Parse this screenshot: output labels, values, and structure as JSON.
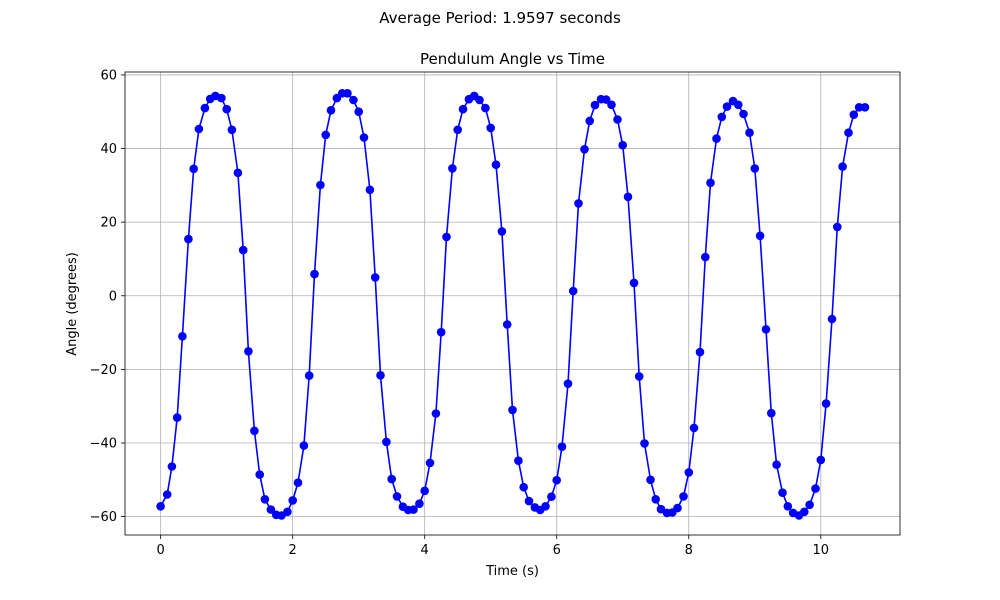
{
  "figure": {
    "suptitle": "Average Period: 1.9597 seconds"
  },
  "chart_data": {
    "type": "line",
    "title": "Pendulum Angle vs Time",
    "xlabel": "Time (s)",
    "ylabel": "Angle (degrees)",
    "xlim": [
      -0.54,
      11.2
    ],
    "ylim": [
      -65,
      60.8
    ],
    "grid": true,
    "xticks": [
      0,
      2,
      4,
      6,
      8,
      10
    ],
    "yticks": [
      -60,
      -40,
      -20,
      0,
      20,
      40,
      60
    ],
    "xtick_labels": [
      "0",
      "2",
      "4",
      "6",
      "8",
      "10"
    ],
    "ytick_labels": [
      "−60",
      "−40",
      "−20",
      "0",
      "20",
      "40",
      "60"
    ],
    "series": [
      {
        "color": "#0000ff",
        "marker": "circle",
        "x": [
          0.0,
          0.1,
          0.17,
          0.25,
          0.33,
          0.42,
          0.5,
          0.58,
          0.67,
          0.75,
          0.83,
          0.92,
          1.0,
          1.08,
          1.17,
          1.25,
          1.33,
          1.42,
          1.5,
          1.58,
          1.67,
          1.75,
          1.83,
          1.92,
          2.0,
          2.08,
          2.17,
          2.25,
          2.33,
          2.42,
          2.5,
          2.58,
          2.67,
          2.75,
          2.83,
          2.92,
          3.0,
          3.08,
          3.17,
          3.25,
          3.33,
          3.42,
          3.5,
          3.58,
          3.67,
          3.75,
          3.83,
          3.92,
          4.0,
          4.08,
          4.17,
          4.25,
          4.33,
          4.42,
          4.5,
          4.58,
          4.67,
          4.75,
          4.83,
          4.92,
          5.0,
          5.08,
          5.17,
          5.25,
          5.33,
          5.42,
          5.5,
          5.58,
          5.67,
          5.75,
          5.83,
          5.92,
          6.0,
          6.08,
          6.17,
          6.25,
          6.33,
          6.42,
          6.5,
          6.58,
          6.67,
          6.75,
          6.83,
          6.92,
          7.0,
          7.08,
          7.17,
          7.25,
          7.33,
          7.42,
          7.5,
          7.58,
          7.67,
          7.75,
          7.83,
          7.92,
          8.0,
          8.08,
          8.17,
          8.25,
          8.33,
          8.42,
          8.5,
          8.58,
          8.67,
          8.75,
          8.83,
          8.92,
          9.0,
          9.08,
          9.17,
          9.25,
          9.33,
          9.42,
          9.5,
          9.58,
          9.67,
          9.75,
          9.83,
          9.92,
          10.0,
          10.08,
          10.17,
          10.25,
          10.33,
          10.42,
          10.5,
          10.58,
          10.67
        ],
        "y": [
          -57.2,
          -54.0,
          -46.4,
          -33.1,
          -11.0,
          15.4,
          34.5,
          45.3,
          51.0,
          53.5,
          54.3,
          53.7,
          50.7,
          45.1,
          33.4,
          12.4,
          -15.1,
          -36.7,
          -48.6,
          -55.3,
          -58.1,
          -59.5,
          -59.7,
          -58.7,
          -55.6,
          -50.8,
          -40.7,
          -21.7,
          5.9,
          30.1,
          43.7,
          50.4,
          53.7,
          55.0,
          55.0,
          53.2,
          50.0,
          43.0,
          28.8,
          5.0,
          -21.6,
          -39.7,
          -49.8,
          -54.5,
          -57.3,
          -58.2,
          -58.1,
          -56.5,
          -53.0,
          -45.4,
          -32.0,
          -9.9,
          16.0,
          34.6,
          45.1,
          50.7,
          53.4,
          54.3,
          53.2,
          51.0,
          45.6,
          35.6,
          17.5,
          -7.8,
          -31.0,
          -44.8,
          -52.0,
          -55.8,
          -57.5,
          -58.2,
          -57.2,
          -54.6,
          -50.1,
          -41.0,
          -23.9,
          1.3,
          25.1,
          39.8,
          47.5,
          51.8,
          53.4,
          53.3,
          51.9,
          47.9,
          40.9,
          26.9,
          3.5,
          -21.9,
          -40.1,
          -50.0,
          -55.3,
          -58.0,
          -59.0,
          -58.9,
          -57.7,
          -54.5,
          -48.0,
          -35.9,
          -15.3,
          10.5,
          30.7,
          42.7,
          48.6,
          51.4,
          52.9,
          51.9,
          49.4,
          44.3,
          34.6,
          16.3,
          -9.1,
          -31.9,
          -45.9,
          -53.5,
          -57.2,
          -59.0,
          -59.7,
          -58.7,
          -56.8,
          -52.4,
          -44.6,
          -29.3,
          -6.3,
          18.7,
          35.1,
          44.3,
          49.2,
          51.2,
          51.2
        ]
      }
    ]
  }
}
